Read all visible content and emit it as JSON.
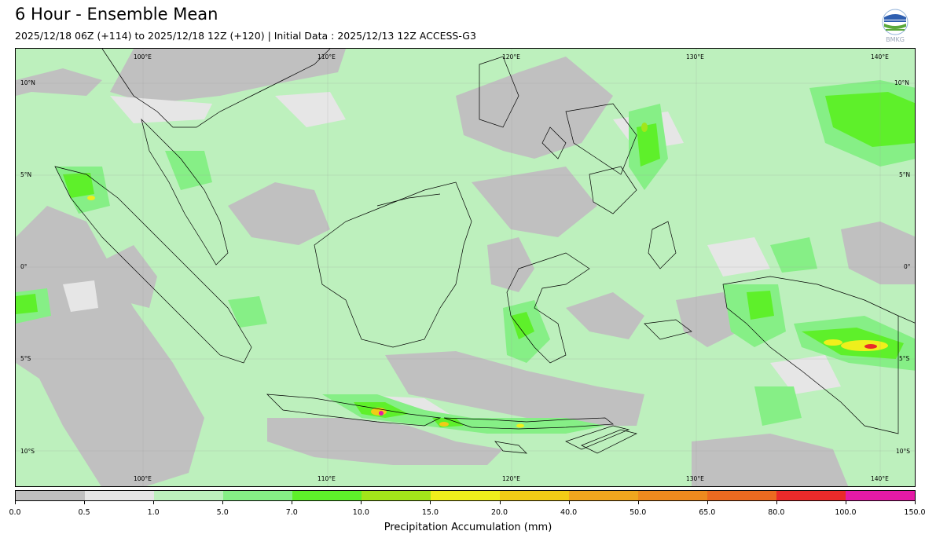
{
  "header": {
    "title": "6 Hour - Ensemble Mean",
    "subtitle": "2025/12/18 06Z (+114) to 2025/12/18 12Z (+120) | Initial Data : 2025/12/13 12Z ACCESS-G3",
    "logo_icon": "bmkg-logo-icon",
    "logo_text": "BMKG"
  },
  "map": {
    "longitude_labels": [
      "100°E",
      "110°E",
      "120°E",
      "130°E",
      "140°E"
    ],
    "latitude_labels": [
      "10°N",
      "5°N",
      "0°",
      "5°S",
      "10°S"
    ],
    "ocean_color": "#bdf0bd",
    "coastline_color": "#000000"
  },
  "colorbar": {
    "label": "Precipitation Accumulation (mm)",
    "ticks": [
      "0.0",
      "0.5",
      "1.0",
      "5.0",
      "7.0",
      "10.0",
      "15.0",
      "20.0",
      "40.0",
      "50.0",
      "65.0",
      "80.0",
      "100.0",
      "150.0"
    ],
    "colors": [
      "#c0c0c0",
      "#e6e6e6",
      "#bdf0bd",
      "#86ef86",
      "#5ef02a",
      "#a2e61a",
      "#efef1c",
      "#f2cc16",
      "#f0a61e",
      "#ee8a1e",
      "#ec6a20",
      "#ea2a2a",
      "#e51aa6"
    ]
  }
}
